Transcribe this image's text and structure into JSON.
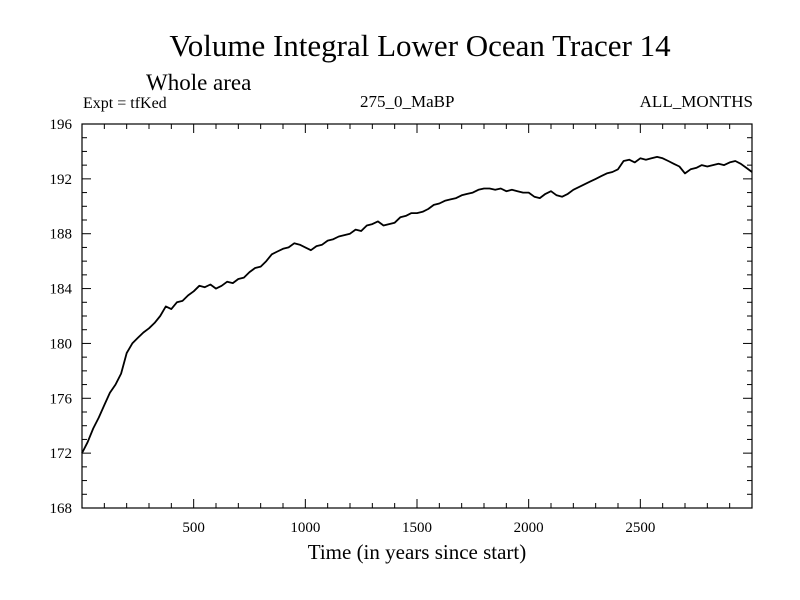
{
  "chart_data": {
    "type": "line",
    "title": "Volume Integral Lower Ocean Tracer 14",
    "subtitle": "Whole area",
    "experiment_label": "Expt = tfKed",
    "experiment_name": "275_0_MaBP",
    "season_label": "ALL_MONTHS",
    "xlabel": "Time (in years since start)",
    "ylabel": "",
    "xlim": [
      0,
      3000
    ],
    "ylim": [
      168,
      196
    ],
    "x_ticks": [
      500,
      1000,
      1500,
      2000,
      2500
    ],
    "y_ticks": [
      168,
      172,
      176,
      180,
      184,
      188,
      192,
      196
    ],
    "grid": false,
    "series": [
      {
        "color": "#000000",
        "x": [
          0,
          25,
          50,
          75,
          100,
          125,
          150,
          175,
          200,
          225,
          250,
          275,
          300,
          325,
          350,
          375,
          400,
          425,
          450,
          475,
          500,
          525,
          550,
          575,
          600,
          625,
          650,
          675,
          700,
          725,
          750,
          775,
          800,
          825,
          850,
          875,
          900,
          925,
          950,
          975,
          1000,
          1025,
          1050,
          1075,
          1100,
          1125,
          1150,
          1175,
          1200,
          1225,
          1250,
          1275,
          1300,
          1325,
          1350,
          1375,
          1400,
          1425,
          1450,
          1475,
          1500,
          1525,
          1550,
          1575,
          1600,
          1625,
          1650,
          1675,
          1700,
          1725,
          1750,
          1775,
          1800,
          1825,
          1850,
          1875,
          1900,
          1925,
          1950,
          1975,
          2000,
          2025,
          2050,
          2075,
          2100,
          2125,
          2150,
          2175,
          2200,
          2225,
          2250,
          2275,
          2300,
          2325,
          2350,
          2375,
          2400,
          2425,
          2450,
          2475,
          2500,
          2525,
          2550,
          2575,
          2600,
          2625,
          2650,
          2675,
          2700,
          2725,
          2750,
          2775,
          2800,
          2825,
          2850,
          2875,
          2900,
          2925,
          2950,
          2975,
          3000
        ],
        "y": [
          172.0,
          172.8,
          173.8,
          174.6,
          175.5,
          176.4,
          177.0,
          177.8,
          179.3,
          180.0,
          180.4,
          180.8,
          181.1,
          181.5,
          182.0,
          182.7,
          182.5,
          183.0,
          183.1,
          183.5,
          183.8,
          184.2,
          184.1,
          184.3,
          184.0,
          184.2,
          184.5,
          184.4,
          184.7,
          184.8,
          185.2,
          185.5,
          185.6,
          186.0,
          186.5,
          186.7,
          186.9,
          187.0,
          187.3,
          187.2,
          187.0,
          186.8,
          187.1,
          187.2,
          187.5,
          187.6,
          187.8,
          187.9,
          188.0,
          188.3,
          188.2,
          188.6,
          188.7,
          188.9,
          188.6,
          188.7,
          188.8,
          189.2,
          189.3,
          189.5,
          189.5,
          189.6,
          189.8,
          190.1,
          190.2,
          190.4,
          190.5,
          190.6,
          190.8,
          190.9,
          191.0,
          191.2,
          191.3,
          191.3,
          191.2,
          191.3,
          191.1,
          191.2,
          191.1,
          191.0,
          191.0,
          190.7,
          190.6,
          190.9,
          191.1,
          190.8,
          190.7,
          190.9,
          191.2,
          191.4,
          191.6,
          191.8,
          192.0,
          192.2,
          192.4,
          192.5,
          192.7,
          193.3,
          193.4,
          193.2,
          193.5,
          193.4,
          193.5,
          193.6,
          193.5,
          193.3,
          193.1,
          192.9,
          192.4,
          192.7,
          192.8,
          193.0,
          192.9,
          193.0,
          193.1,
          193.0,
          193.2,
          193.3,
          193.1,
          192.8,
          192.5
        ]
      }
    ]
  }
}
